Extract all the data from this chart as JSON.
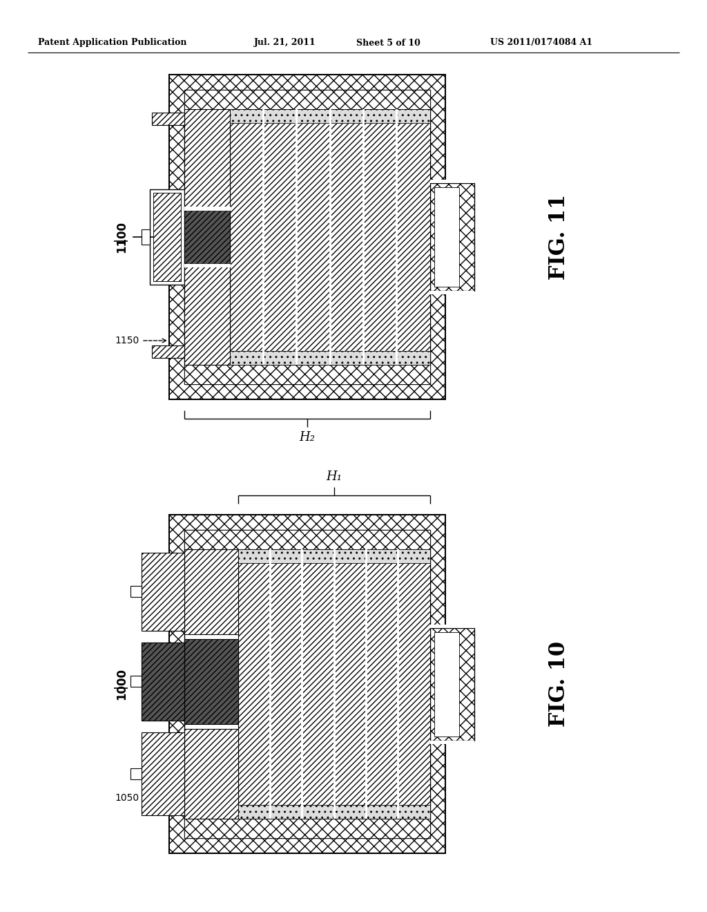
{
  "bg_color": "#ffffff",
  "header_text": "Patent Application Publication",
  "header_date": "Jul. 21, 2011",
  "header_sheet": "Sheet 5 of 10",
  "header_patent": "US 2011/0174084 A1",
  "fig10_label": "FIG. 10",
  "fig11_label": "FIG. 11",
  "label_1000": "1000",
  "label_1050": "1050",
  "label_1100": "1100",
  "label_1150": "1150",
  "label_H1": "H₁",
  "label_H2": "H₂",
  "fig11": {
    "ox": 245,
    "oy": 108,
    "ow": 400,
    "oh": 470
  },
  "fig10": {
    "ox": 245,
    "oy": 745,
    "ow": 400,
    "oh": 490
  }
}
